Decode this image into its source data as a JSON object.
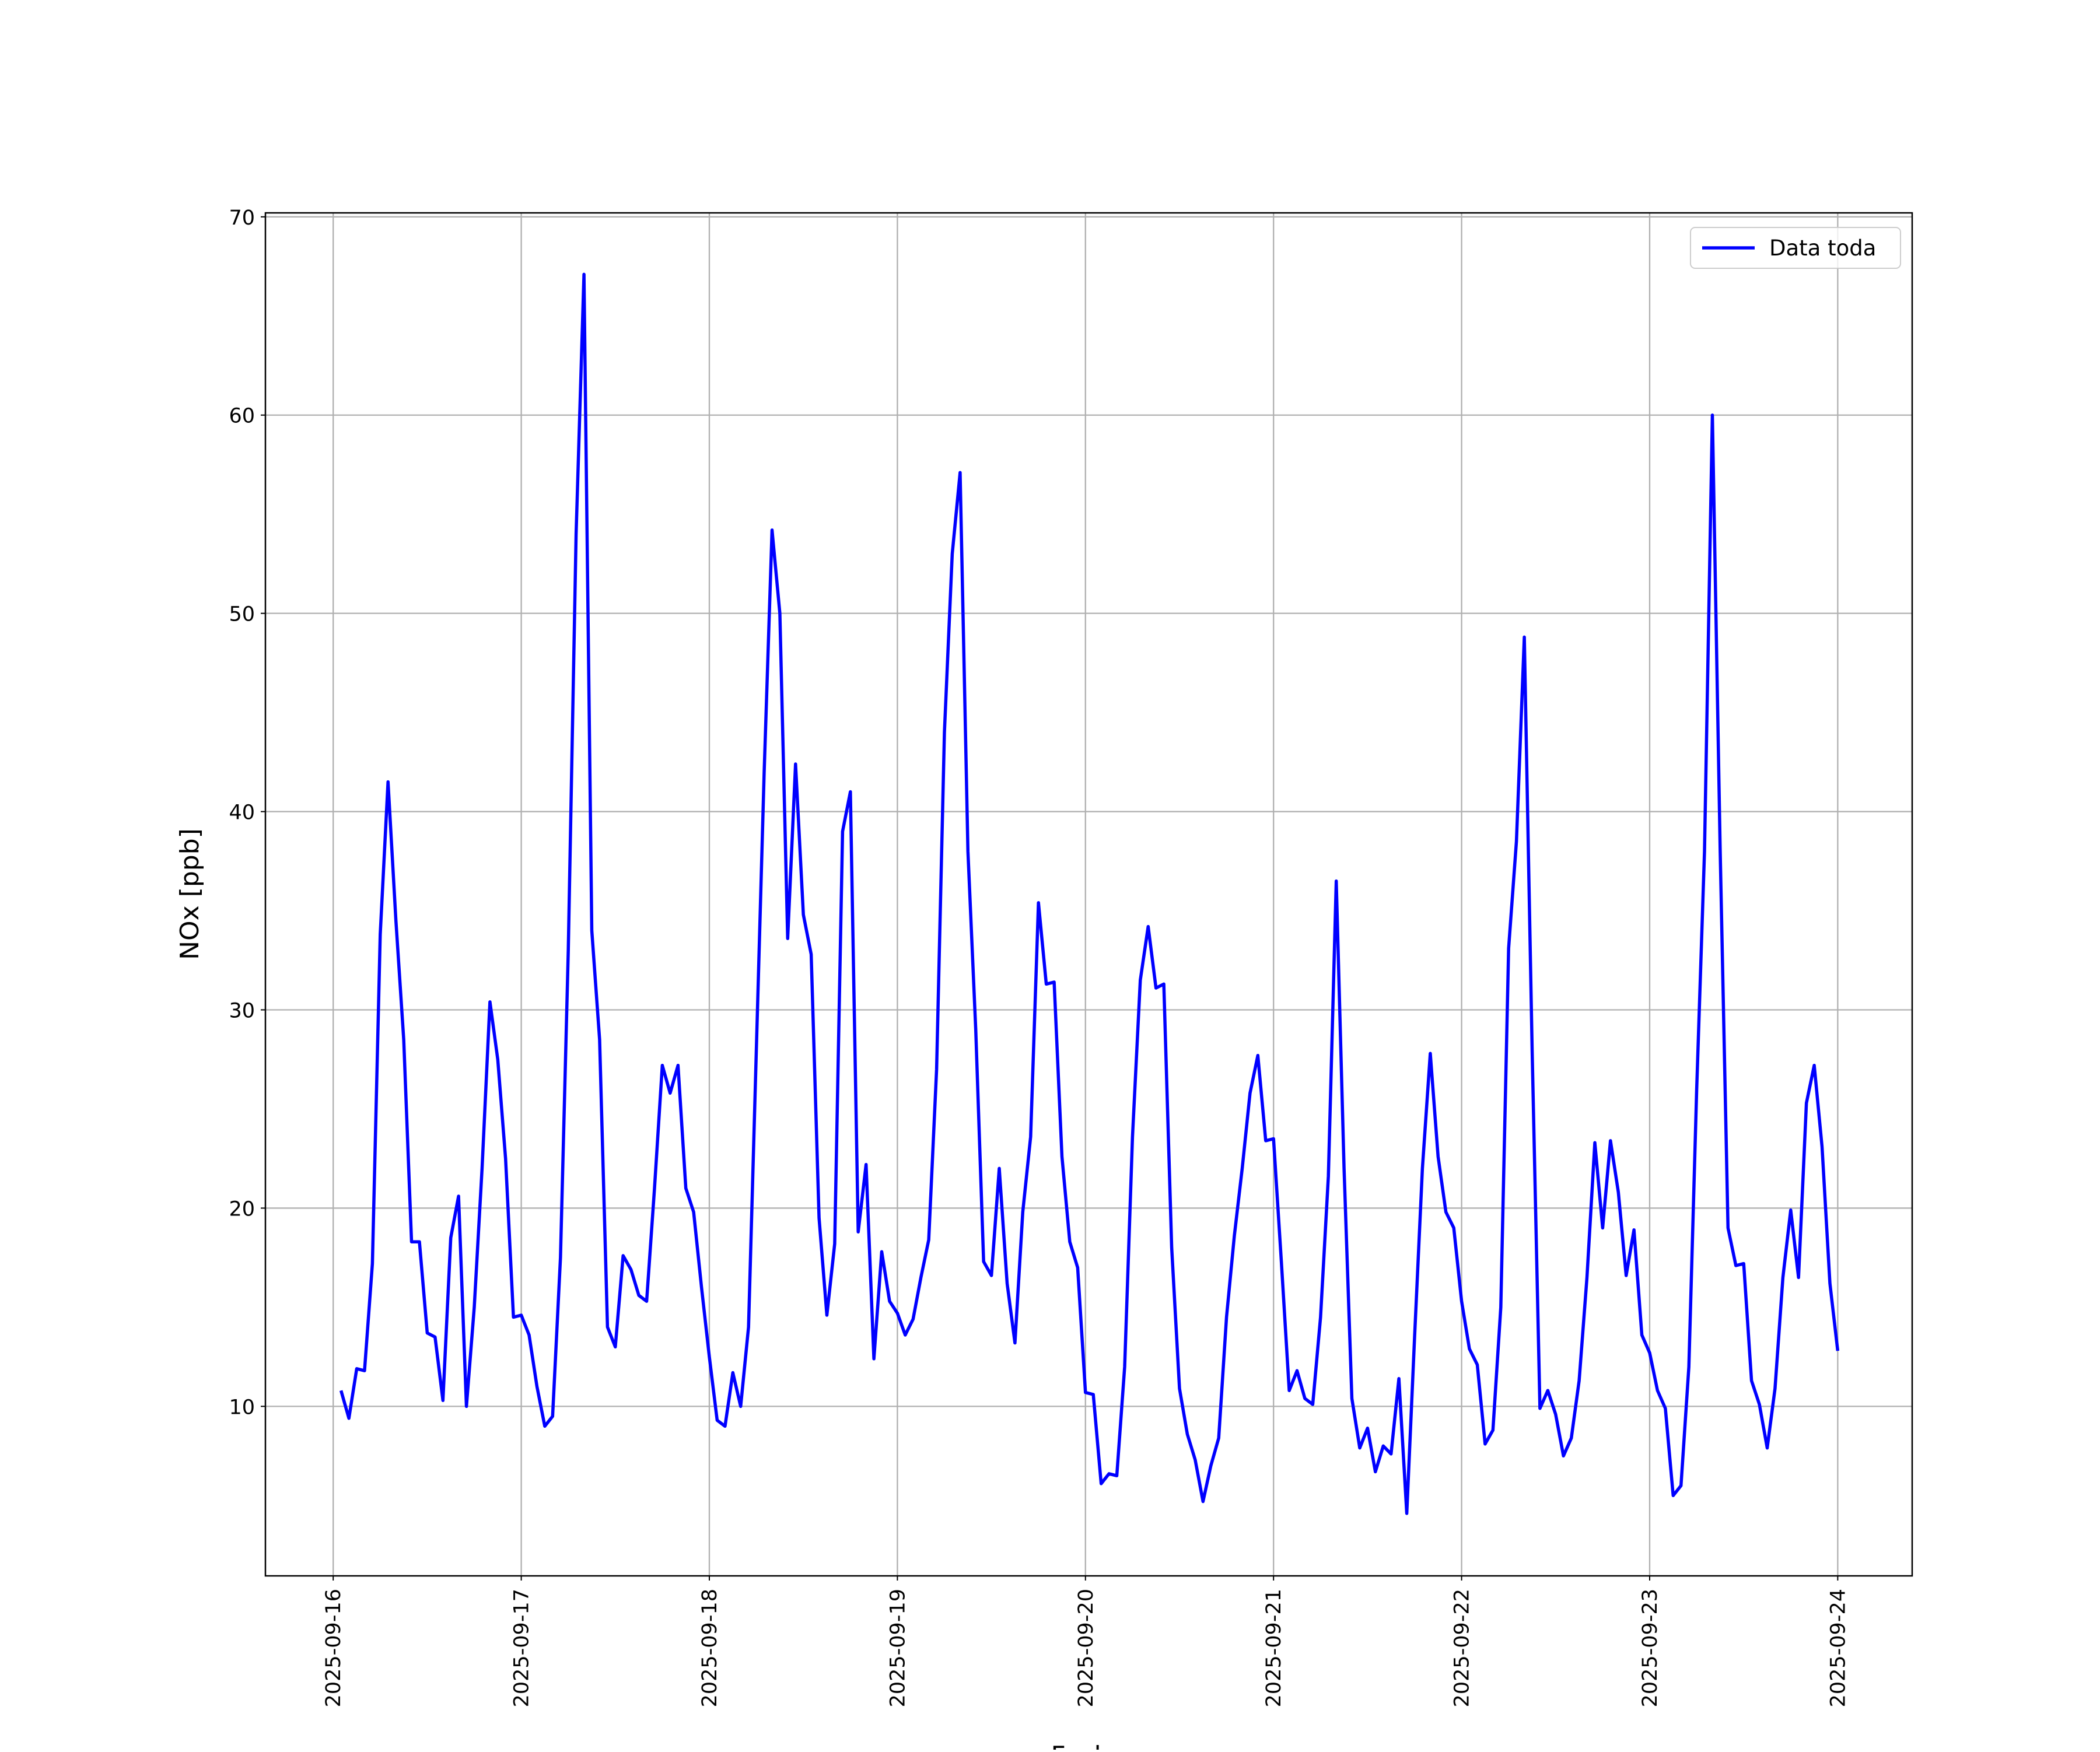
{
  "chart_data": {
    "type": "line",
    "x": [
      "2025-09-16T01:00",
      "2025-09-16T02:00",
      "2025-09-16T03:00",
      "2025-09-16T04:00",
      "2025-09-16T05:00",
      "2025-09-16T06:00",
      "2025-09-16T07:00",
      "2025-09-16T08:00",
      "2025-09-16T09:00",
      "2025-09-16T10:00",
      "2025-09-16T11:00",
      "2025-09-16T12:00",
      "2025-09-16T13:00",
      "2025-09-16T14:00",
      "2025-09-16T15:00",
      "2025-09-16T16:00",
      "2025-09-16T17:00",
      "2025-09-16T18:00",
      "2025-09-16T19:00",
      "2025-09-16T20:00",
      "2025-09-16T21:00",
      "2025-09-16T22:00",
      "2025-09-16T23:00",
      "2025-09-17T00:00",
      "2025-09-17T01:00",
      "2025-09-17T02:00",
      "2025-09-17T03:00",
      "2025-09-17T04:00",
      "2025-09-17T05:00",
      "2025-09-17T06:00",
      "2025-09-17T07:00",
      "2025-09-17T08:00",
      "2025-09-17T09:00",
      "2025-09-17T10:00",
      "2025-09-17T11:00",
      "2025-09-17T12:00",
      "2025-09-17T13:00",
      "2025-09-17T14:00",
      "2025-09-17T15:00",
      "2025-09-17T16:00",
      "2025-09-17T17:00",
      "2025-09-17T18:00",
      "2025-09-17T19:00",
      "2025-09-17T20:00",
      "2025-09-17T21:00",
      "2025-09-17T22:00",
      "2025-09-17T23:00",
      "2025-09-18T00:00",
      "2025-09-18T01:00",
      "2025-09-18T02:00",
      "2025-09-18T03:00",
      "2025-09-18T04:00",
      "2025-09-18T05:00",
      "2025-09-18T06:00",
      "2025-09-18T07:00",
      "2025-09-18T08:00",
      "2025-09-18T09:00",
      "2025-09-18T10:00",
      "2025-09-18T11:00",
      "2025-09-18T12:00",
      "2025-09-18T13:00",
      "2025-09-18T14:00",
      "2025-09-18T15:00",
      "2025-09-18T16:00",
      "2025-09-18T17:00",
      "2025-09-18T18:00",
      "2025-09-18T19:00",
      "2025-09-18T20:00",
      "2025-09-18T21:00",
      "2025-09-18T22:00",
      "2025-09-18T23:00",
      "2025-09-19T00:00",
      "2025-09-19T01:00",
      "2025-09-19T02:00",
      "2025-09-19T03:00",
      "2025-09-19T04:00",
      "2025-09-19T05:00",
      "2025-09-19T06:00",
      "2025-09-19T07:00",
      "2025-09-19T08:00",
      "2025-09-19T09:00",
      "2025-09-19T10:00",
      "2025-09-19T11:00",
      "2025-09-19T12:00",
      "2025-09-19T13:00",
      "2025-09-19T14:00",
      "2025-09-19T15:00",
      "2025-09-19T16:00",
      "2025-09-19T17:00",
      "2025-09-19T18:00",
      "2025-09-19T19:00",
      "2025-09-19T20:00",
      "2025-09-19T21:00",
      "2025-09-19T22:00",
      "2025-09-19T23:00",
      "2025-09-20T00:00",
      "2025-09-20T01:00",
      "2025-09-20T02:00",
      "2025-09-20T03:00",
      "2025-09-20T04:00",
      "2025-09-20T05:00",
      "2025-09-20T06:00",
      "2025-09-20T07:00",
      "2025-09-20T08:00",
      "2025-09-20T09:00",
      "2025-09-20T10:00",
      "2025-09-20T11:00",
      "2025-09-20T12:00",
      "2025-09-20T13:00",
      "2025-09-20T14:00",
      "2025-09-20T15:00",
      "2025-09-20T16:00",
      "2025-09-20T17:00",
      "2025-09-20T18:00",
      "2025-09-20T19:00",
      "2025-09-20T20:00",
      "2025-09-20T21:00",
      "2025-09-20T22:00",
      "2025-09-20T23:00",
      "2025-09-21T00:00",
      "2025-09-21T01:00",
      "2025-09-21T02:00",
      "2025-09-21T03:00",
      "2025-09-21T04:00",
      "2025-09-21T05:00",
      "2025-09-21T06:00",
      "2025-09-21T07:00",
      "2025-09-21T08:00",
      "2025-09-21T09:00",
      "2025-09-21T10:00",
      "2025-09-21T11:00",
      "2025-09-21T12:00",
      "2025-09-21T13:00",
      "2025-09-21T14:00",
      "2025-09-21T15:00",
      "2025-09-21T16:00",
      "2025-09-21T17:00",
      "2025-09-21T18:00",
      "2025-09-21T19:00",
      "2025-09-21T20:00",
      "2025-09-21T21:00",
      "2025-09-21T22:00",
      "2025-09-21T23:00",
      "2025-09-22T00:00",
      "2025-09-22T01:00",
      "2025-09-22T02:00",
      "2025-09-22T03:00",
      "2025-09-22T04:00",
      "2025-09-22T05:00",
      "2025-09-22T06:00",
      "2025-09-22T07:00",
      "2025-09-22T08:00",
      "2025-09-22T09:00",
      "2025-09-22T10:00",
      "2025-09-22T11:00",
      "2025-09-22T12:00",
      "2025-09-22T13:00",
      "2025-09-22T14:00",
      "2025-09-22T15:00",
      "2025-09-22T16:00",
      "2025-09-22T17:00",
      "2025-09-22T18:00",
      "2025-09-22T19:00",
      "2025-09-22T20:00",
      "2025-09-22T21:00",
      "2025-09-22T22:00",
      "2025-09-22T23:00",
      "2025-09-23T00:00",
      "2025-09-23T01:00",
      "2025-09-23T02:00",
      "2025-09-23T03:00",
      "2025-09-23T04:00",
      "2025-09-23T05:00",
      "2025-09-23T06:00",
      "2025-09-23T07:00",
      "2025-09-23T08:00",
      "2025-09-23T09:00",
      "2025-09-23T10:00",
      "2025-09-23T11:00",
      "2025-09-23T12:00",
      "2025-09-23T13:00",
      "2025-09-23T14:00",
      "2025-09-23T15:00",
      "2025-09-23T16:00",
      "2025-09-23T17:00",
      "2025-09-23T18:00",
      "2025-09-23T19:00",
      "2025-09-23T20:00",
      "2025-09-23T21:00",
      "2025-09-23T22:00",
      "2025-09-23T23:00",
      "2025-09-24T00:00"
    ],
    "series": [
      {
        "name": "Data toda",
        "color": "#0000ff",
        "values": [
          10.8,
          9.4,
          11.9,
          11.8,
          17.2,
          33.8,
          41.5,
          34.5,
          28.5,
          18.3,
          18.3,
          13.7,
          13.5,
          10.3,
          18.5,
          20.6,
          10,
          15,
          22,
          30.4,
          27.5,
          22.5,
          14.5,
          14.6,
          13.6,
          11,
          9,
          9.5,
          17.5,
          33,
          54,
          67.1,
          34,
          28.5,
          14,
          13,
          17.6,
          16.9,
          15.6,
          15.3,
          21,
          27.2,
          25.8,
          27.2,
          21,
          19.8,
          16,
          12.5,
          9.3,
          9,
          11.7,
          10,
          14,
          28,
          42,
          54.2,
          50,
          33.6,
          42.4,
          34.8,
          32.8,
          19.5,
          14.6,
          18.2,
          39,
          41,
          18.8,
          22.2,
          12.4,
          17.8,
          15.3,
          14.7,
          13.6,
          14.4,
          16.5,
          18.4,
          27,
          44,
          53,
          57.1,
          38,
          29,
          17.3,
          16.6,
          22,
          16.2,
          13.2,
          19.8,
          23.6,
          35.4,
          31.3,
          31.4,
          22.6,
          18.3,
          17,
          10.7,
          10.6,
          6.1,
          6.6,
          6.5,
          12,
          23.6,
          31.5,
          34.2,
          31.1,
          31.3,
          18,
          10.9,
          8.6,
          7.3,
          5.2,
          7,
          8.4,
          14.5,
          18.6,
          22,
          25.8,
          27.7,
          23.4,
          23.5,
          17.3,
          10.8,
          11.8,
          10.4,
          10.1,
          14.5,
          21.6,
          36.5,
          22,
          10.4,
          7.9,
          8.9,
          6.7,
          8,
          7.6,
          11.4,
          4.6,
          13.5,
          22,
          27.8,
          22.6,
          19.8,
          19,
          15.3,
          12.9,
          12.1,
          8.1,
          8.8,
          15,
          33.1,
          38.5,
          48.8,
          28,
          9.9,
          10.8,
          9.6,
          7.5,
          8.4,
          11.3,
          16.5,
          23.3,
          19,
          23.4,
          20.8,
          16.6,
          18.9,
          13.6,
          12.7,
          10.8,
          9.9,
          5.5,
          6,
          12,
          26,
          38,
          60,
          38,
          19,
          17.1,
          17.2,
          11.3,
          10.1,
          7.9,
          10.9,
          16.5,
          19.9,
          16.5,
          25.3,
          27.2,
          23.1,
          16.2,
          12.8
        ]
      }
    ],
    "xlabel": "Fecha",
    "ylabel": "NOx [ppb]",
    "xlim": [
      "2025-09-15T15:21",
      "2025-09-24T09:30"
    ],
    "xticks": [
      "2025-09-16",
      "2025-09-17",
      "2025-09-18",
      "2025-09-19",
      "2025-09-20",
      "2025-09-21",
      "2025-09-22",
      "2025-09-23",
      "2025-09-24"
    ],
    "ylim": [
      1.45,
      70.2
    ],
    "yticks": [
      10,
      20,
      30,
      40,
      50,
      60,
      70
    ],
    "grid": true,
    "legend": "upper right"
  }
}
